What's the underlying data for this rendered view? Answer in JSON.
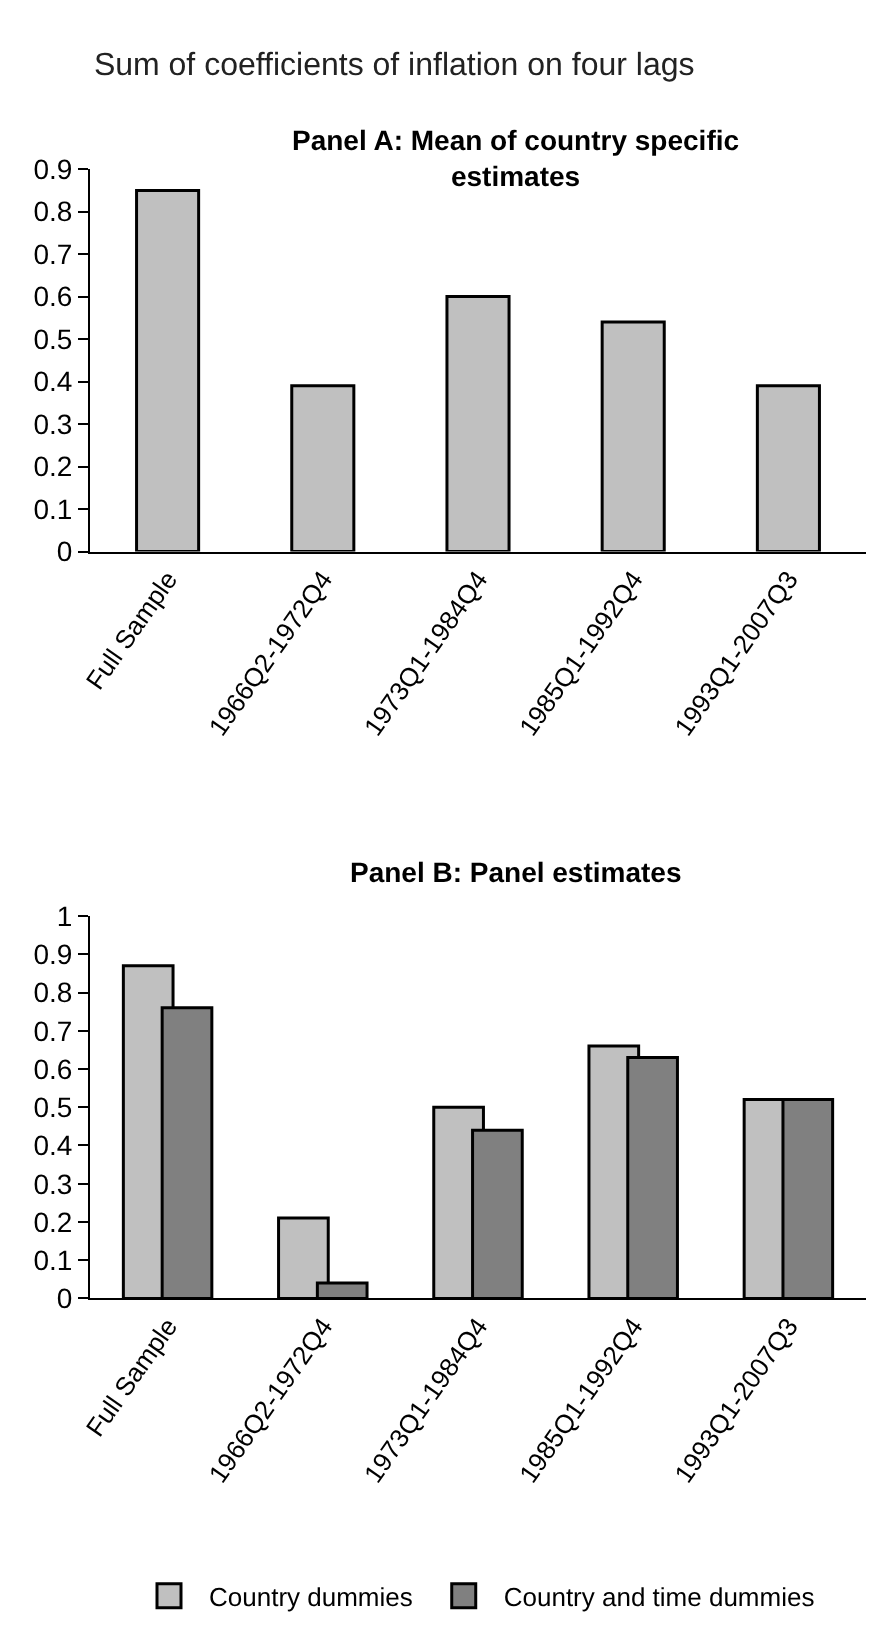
{
  "chart_data": [
    {
      "type": "bar",
      "title": "Sum of coefficients of inflation on four lags",
      "subtitle": "Panel A: Mean of country specific estimates",
      "categories": [
        "Full Sample",
        "1966Q2-1972Q4",
        "1973Q1-1984Q4",
        "1985Q1-1992Q4",
        "1993Q1-2007Q3"
      ],
      "series": [
        {
          "color": "#c0c0c0",
          "values": [
            0.85,
            0.39,
            0.6,
            0.54,
            0.39
          ]
        }
      ],
      "ylim": [
        0,
        0.9
      ],
      "yticks": [
        0,
        0.1,
        0.2,
        0.3,
        0.4,
        0.5,
        0.6,
        0.7,
        0.8,
        0.9
      ]
    },
    {
      "type": "bar",
      "title": "Panel B: Panel estimates",
      "categories": [
        "Full Sample",
        "1966Q2-1972Q4",
        "1973Q1-1984Q4",
        "1985Q1-1992Q4",
        "1993Q1-2007Q3"
      ],
      "series": [
        {
          "name": "Country dummies",
          "color": "#c0c0c0",
          "values": [
            0.87,
            0.21,
            0.5,
            0.66,
            0.52
          ]
        },
        {
          "name": "Country and time dummies",
          "color": "#808080",
          "values": [
            0.76,
            0.04,
            0.44,
            0.63,
            0.52
          ]
        }
      ],
      "ylim": [
        0,
        1
      ],
      "yticks": [
        0,
        0.1,
        0.2,
        0.3,
        0.4,
        0.5,
        0.6,
        0.7,
        0.8,
        0.9,
        1
      ],
      "legend": "bottom"
    }
  ]
}
